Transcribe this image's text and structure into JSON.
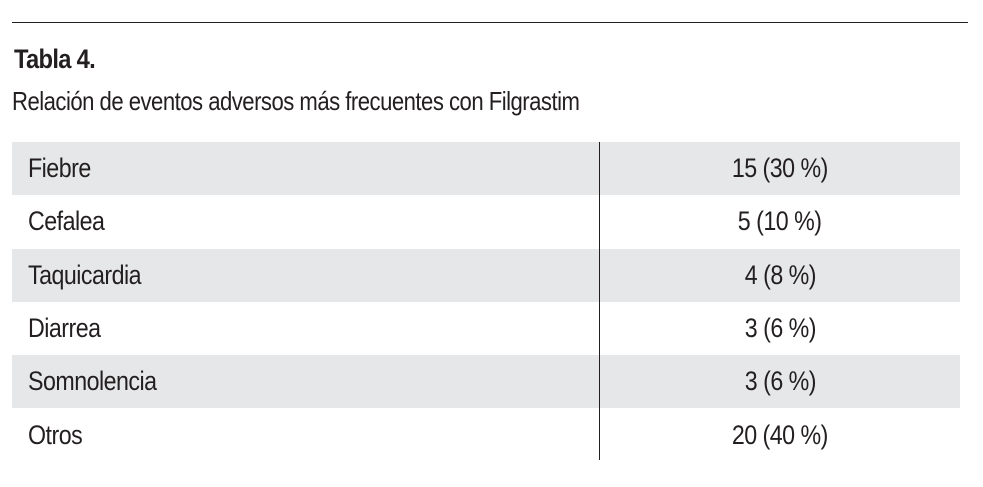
{
  "table": {
    "title": "Tabla 4.",
    "caption": "Relación de eventos adversos más frecuentes con Filgrastim",
    "rows": [
      {
        "label": "Fiebre",
        "value": "15 (30 %)"
      },
      {
        "label": "Cefalea",
        "value": "5 (10 %)"
      },
      {
        "label": "Taquicardia",
        "value": "4 (8 %)"
      },
      {
        "label": "Diarrea",
        "value": "3 (6 %)"
      },
      {
        "label": "Somnolencia",
        "value": "3 (6 %)"
      },
      {
        "label": "Otros",
        "value": "20 (40 %)"
      }
    ],
    "colors": {
      "shaded_row": "#e6e7e8",
      "text": "#231f20",
      "background": "#ffffff"
    }
  }
}
